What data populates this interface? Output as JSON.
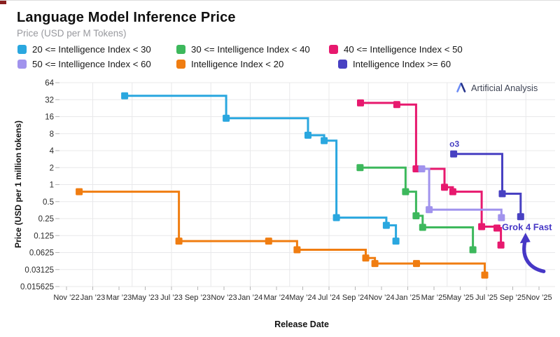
{
  "page": {
    "title": "Language Model Inference Price",
    "subtitle": "Price (USD per M Tokens)",
    "watermark": "Artificial Analysis"
  },
  "chart_data": {
    "type": "line",
    "step": "after",
    "grid": true,
    "legend_position": "top",
    "x_axis_label": "Release Date",
    "y_axis_label": "Price (USD per 1 million tokens)",
    "y_scale": "log2",
    "ylim": [
      0.015625,
      64
    ],
    "xlim": [
      "2022-11-01",
      "2025-11-01"
    ],
    "y_ticks": [
      "64",
      "32",
      "16",
      "8",
      "4",
      "2",
      "1",
      "0.5",
      "0.25",
      "0.125",
      "0.0625",
      "0.03125",
      "0.015625"
    ],
    "x_ticks": [
      "Nov ’22",
      "Jan ’23",
      "Mar ’23",
      "May ’23",
      "Jul ’23",
      "Sep ’23",
      "Nov ’23",
      "Jan ’24",
      "Mar ’24",
      "May ’24",
      "Jul ’24",
      "Sep ’24",
      "Nov ’24",
      "Jan ’25",
      "Mar ’25",
      "May ’25",
      "Jul ’25",
      "Sep ’25",
      "Nov ’25"
    ],
    "series": [
      {
        "name": "20 <= Intelligence Index < 30",
        "color": "#2AA7DF",
        "points": [
          {
            "date": "2023-03-14",
            "price": 37.5
          },
          {
            "date": "2023-11-06",
            "price": 15
          },
          {
            "date": "2024-05-13",
            "price": 7.5
          },
          {
            "date": "2024-06-20",
            "price": 6
          },
          {
            "date": "2024-07-18",
            "price": 0.26
          },
          {
            "date": "2024-11-12",
            "price": 0.19
          },
          {
            "date": "2024-12-04",
            "price": 0.1
          }
        ]
      },
      {
        "name": "30 <= Intelligence Index < 40",
        "color": "#3DB85C",
        "points": [
          {
            "date": "2024-09-12",
            "price": 2.0
          },
          {
            "date": "2024-12-26",
            "price": 0.75
          },
          {
            "date": "2025-01-20",
            "price": 0.28
          },
          {
            "date": "2025-02-05",
            "price": 0.175
          },
          {
            "date": "2025-05-30",
            "price": 0.07
          }
        ]
      },
      {
        "name": "40 <= Intelligence Index < 50",
        "color": "#E7196E",
        "points": [
          {
            "date": "2024-09-13",
            "price": 28
          },
          {
            "date": "2024-12-06",
            "price": 26.25
          },
          {
            "date": "2025-01-20",
            "price": 1.9
          },
          {
            "date": "2025-03-25",
            "price": 0.9
          },
          {
            "date": "2025-04-14",
            "price": 0.75
          },
          {
            "date": "2025-06-20",
            "price": 0.18
          },
          {
            "date": "2025-07-25",
            "price": 0.17
          },
          {
            "date": "2025-08-04",
            "price": 0.085
          }
        ]
      },
      {
        "name": "50 <= Intelligence Index < 60",
        "color": "#A193ED",
        "points": [
          {
            "date": "2025-02-03",
            "price": 1.9
          },
          {
            "date": "2025-02-20",
            "price": 0.36
          },
          {
            "date": "2025-08-05",
            "price": 0.26
          }
        ]
      },
      {
        "name": "Intelligence Index < 20",
        "color": "#F07D11",
        "points": [
          {
            "date": "2022-11-30",
            "price": 0.75
          },
          {
            "date": "2023-07-18",
            "price": 0.1
          },
          {
            "date": "2024-02-13",
            "price": 0.1
          },
          {
            "date": "2024-04-18",
            "price": 0.07
          },
          {
            "date": "2024-09-25",
            "price": 0.05
          },
          {
            "date": "2024-10-16",
            "price": 0.04
          },
          {
            "date": "2025-01-21",
            "price": 0.04
          },
          {
            "date": "2025-06-27",
            "price": 0.025
          }
        ]
      },
      {
        "name": "Intelligence Index >= 60",
        "color": "#4841C2",
        "points": [
          {
            "date": "2025-04-16",
            "price": 3.5
          },
          {
            "date": "2025-08-07",
            "price": 0.69
          },
          {
            "date": "2025-09-19",
            "price": 0.27
          }
        ]
      }
    ],
    "annotations": [
      {
        "text": "o3",
        "date": "2025-04-16",
        "price": 3.5,
        "color": "#4841C2",
        "placement": "above",
        "arrow": false
      },
      {
        "text": "Grok 4 Fast",
        "date": "2025-09-19",
        "price": 0.27,
        "color": "#4637C6",
        "placement": "below-right",
        "arrow": true
      }
    ]
  }
}
